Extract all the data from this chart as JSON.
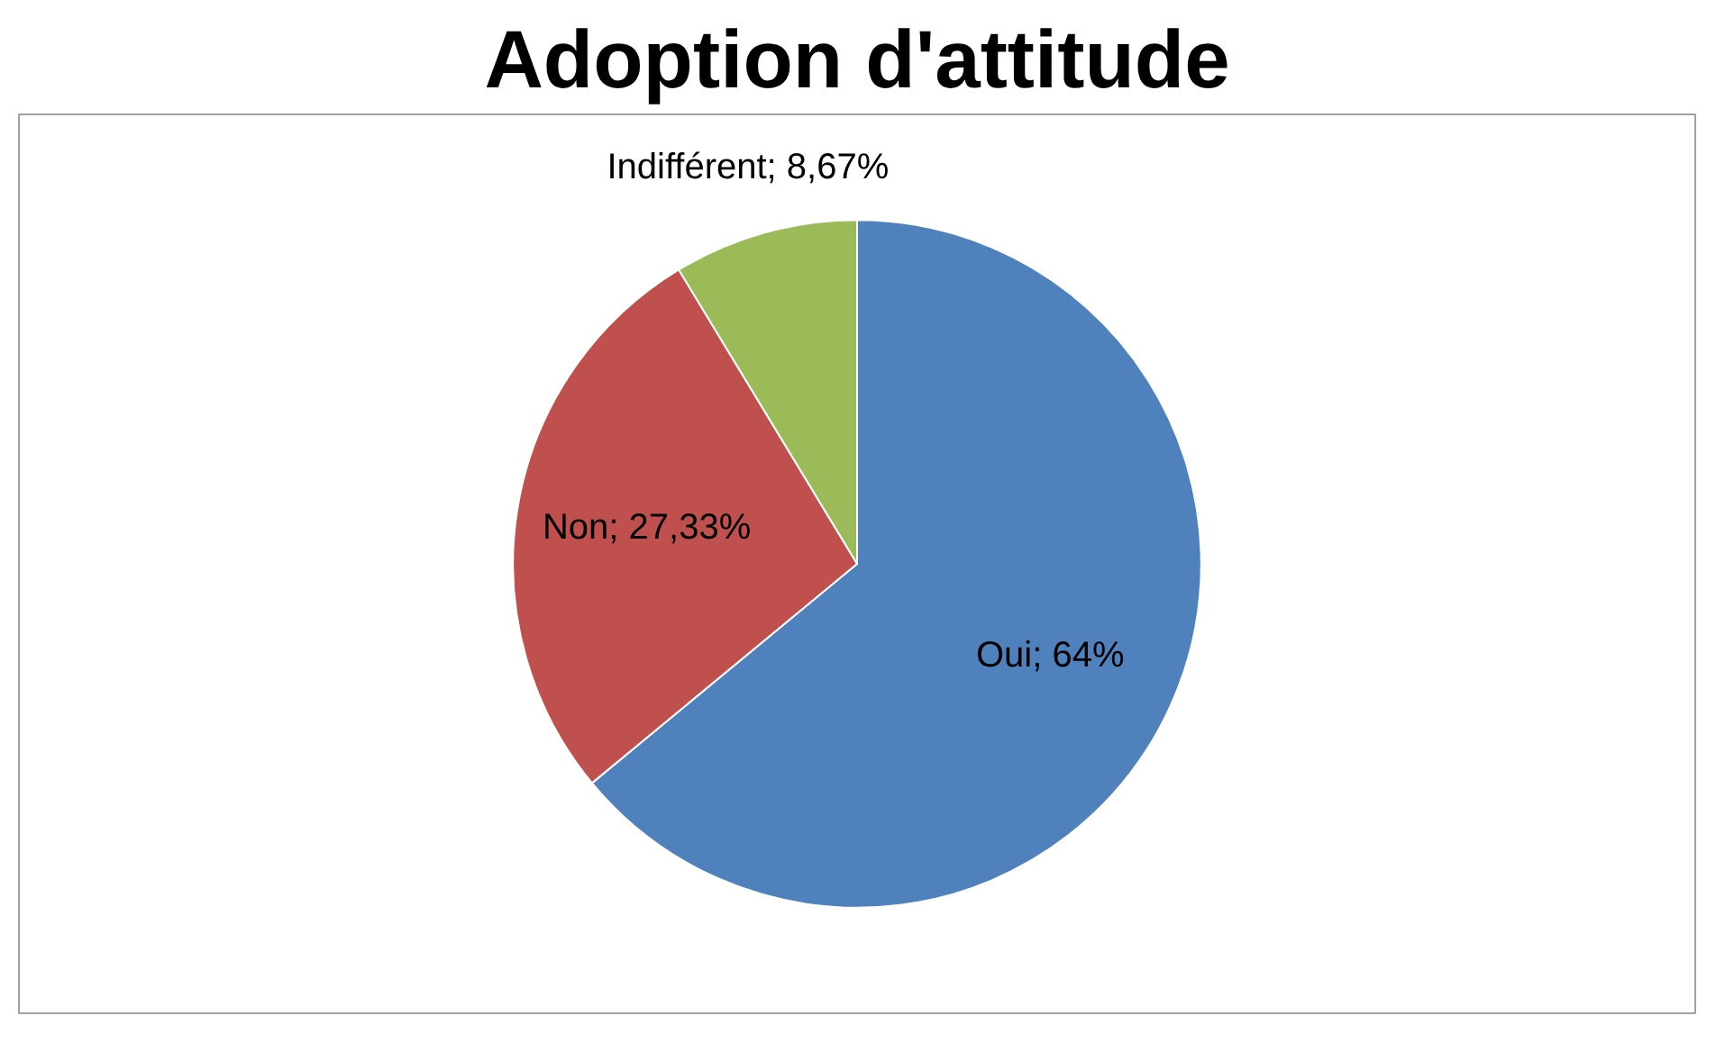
{
  "chart_data": {
    "type": "pie",
    "title": "Adoption d'attitude",
    "categories": [
      "Oui",
      "Non",
      "Indifférent"
    ],
    "values": [
      64,
      27.33,
      8.67
    ],
    "value_labels": [
      "64%",
      "27,33%",
      "8,67%"
    ],
    "colors": [
      "#4f81bd",
      "#c0504d",
      "#9bbb59"
    ],
    "legend": false
  }
}
